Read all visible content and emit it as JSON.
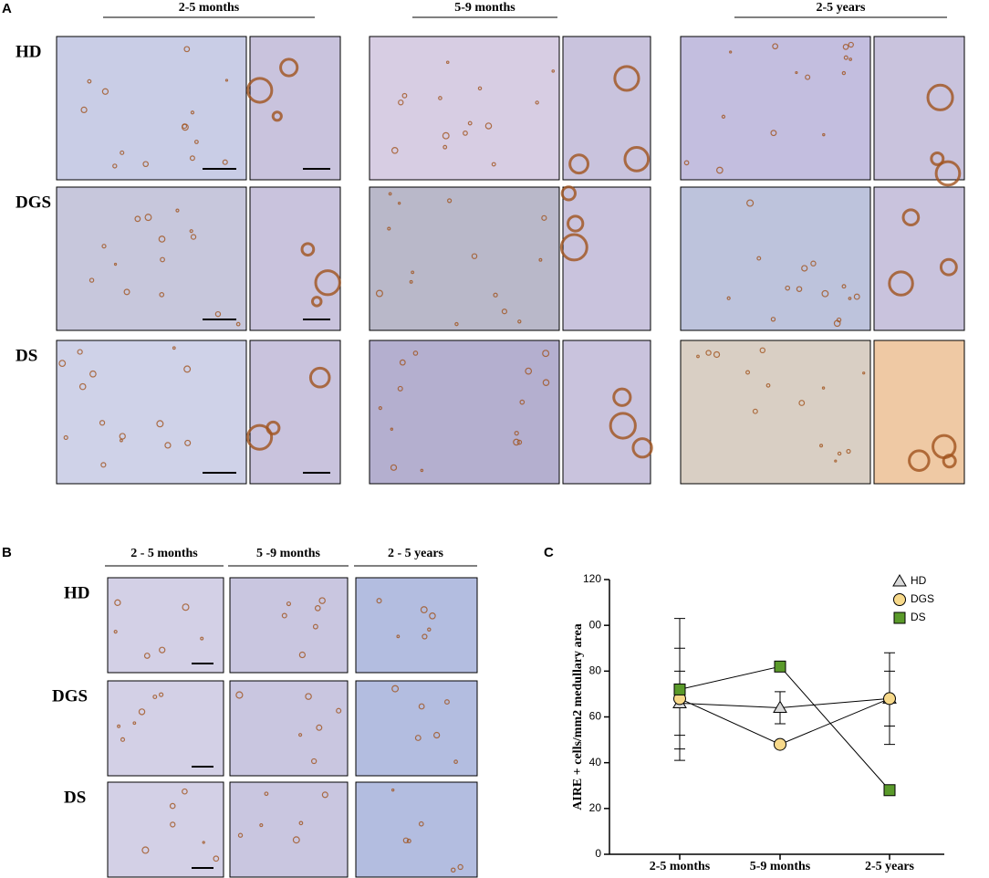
{
  "panel_a": {
    "label": "A",
    "columns": [
      "2-5 months",
      "5-9 months",
      "2-5 years"
    ],
    "rows": [
      "HD",
      "DGS",
      "DS"
    ]
  },
  "panel_b": {
    "label": "B",
    "columns": [
      "2 - 5 months",
      "5 -9 months",
      "2 - 5 years"
    ],
    "rows": [
      "HD",
      "DGS",
      "DS"
    ]
  },
  "chart_data": {
    "type": "line",
    "panel_label": "C",
    "y_label": "AIRE + cells/mm2 medullary area",
    "categories": [
      "2-5 months",
      "5-9 months",
      "2-5 years"
    ],
    "ylim": [
      0,
      120
    ],
    "yticks": [
      0,
      20,
      40,
      60,
      80,
      {
        "value": 100,
        "label": "00"
      },
      120
    ],
    "legend": "top-right",
    "series": [
      {
        "name": "HD",
        "color": "#d9d9d9",
        "marker": "triangle",
        "values": [
          66,
          64,
          68
        ],
        "errors": [
          14,
          7,
          12
        ]
      },
      {
        "name": "DGS",
        "color": "#f7d98a",
        "marker": "circle",
        "values": [
          68,
          48,
          68
        ],
        "errors": [
          22,
          null,
          20
        ]
      },
      {
        "name": "DS",
        "color": "#5a9a2a",
        "marker": "square",
        "values": [
          72,
          82,
          28
        ],
        "errors": [
          31,
          null,
          null
        ]
      }
    ]
  }
}
